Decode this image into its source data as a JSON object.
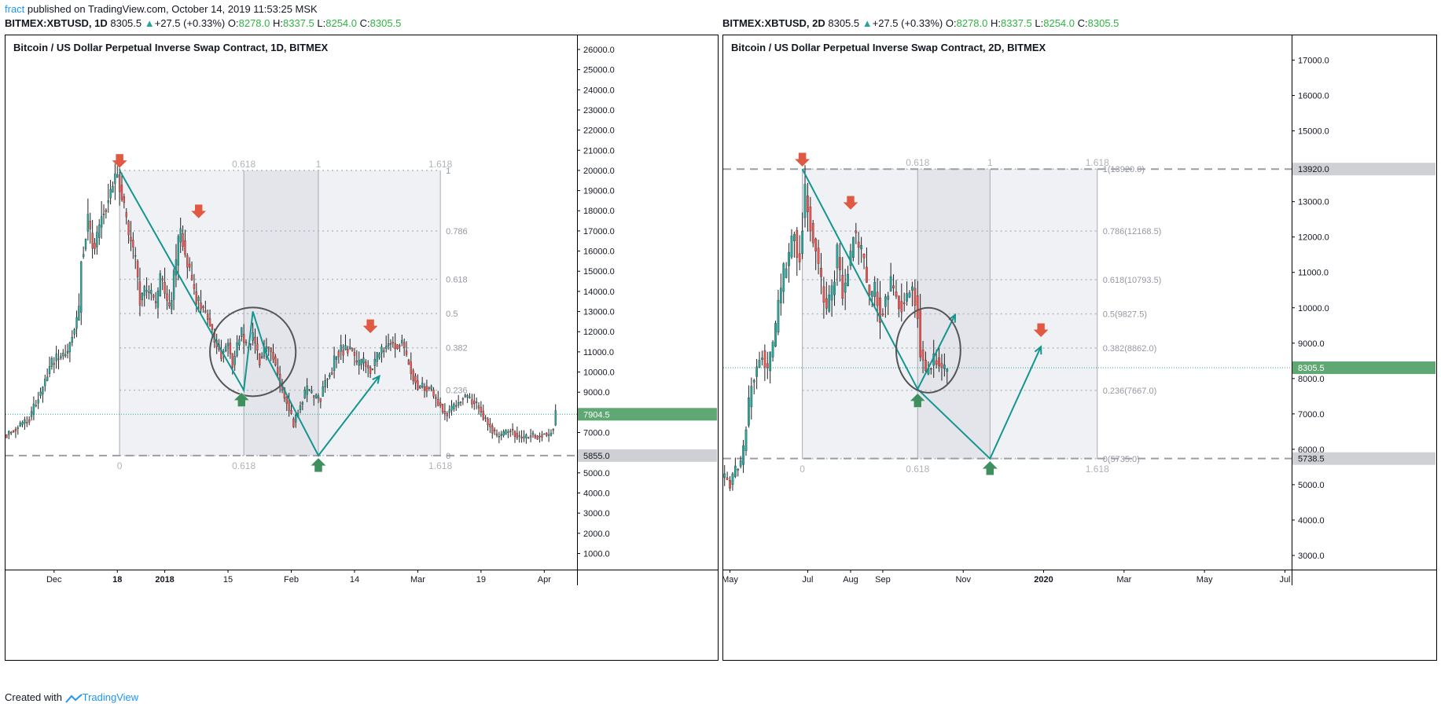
{
  "header": {
    "author": "fract",
    "published_text": " published on TradingView.com, October 14, 2019 11:53:25 MSK"
  },
  "footer": {
    "created_with": "Created with",
    "brand": "TradingView"
  },
  "colors": {
    "up": "#26a69a",
    "down": "#ef5350",
    "drawing": "#14958f",
    "arrow_up": "#3f8f5f",
    "arrow_down": "#e05a43",
    "fib_zone": "#ebecf0"
  },
  "charts": [
    {
      "ohlc": {
        "symbol": "BITMEX:XBTUSD, 1D",
        "last": "8305.5",
        "change": "+27.5 (+0.33%)",
        "o_label": "O:",
        "o": "8278.0",
        "h_label": "H:",
        "h": "8337.5",
        "l_label": "L:",
        "l": "8254.0",
        "c_label": "C:",
        "c": "8305.5"
      },
      "title": "Bitcoin / US Dollar Perpetual Inverse Swap Contract, 1D, BITMEX",
      "price_scale": {
        "min": 200,
        "max": 26700,
        "ticks": [
          1000,
          2000,
          3000,
          4000,
          5000,
          6000,
          7000,
          8000,
          9000,
          10000,
          11000,
          12000,
          13000,
          14000,
          15000,
          16000,
          17000,
          18000,
          19000,
          20000,
          21000,
          22000,
          23000,
          24000,
          25000,
          26000
        ]
      },
      "time_labels": [
        {
          "text": "Dec",
          "bar": 21
        },
        {
          "text": "18",
          "bar": 49,
          "bold": true
        },
        {
          "text": "2018",
          "bar": 70,
          "bold": true
        },
        {
          "text": "15",
          "bar": 98
        },
        {
          "text": "Feb",
          "bar": 126
        },
        {
          "text": "14",
          "bar": 154
        },
        {
          "text": "Mar",
          "bar": 182
        },
        {
          "text": "19",
          "bar": 210
        },
        {
          "text": "Apr",
          "bar": 238
        }
      ],
      "bars_visible": 253,
      "series": [
        [
          0,
          6900
        ],
        [
          10,
          7700
        ],
        [
          15,
          9000
        ],
        [
          20,
          10500
        ],
        [
          27,
          11000
        ],
        [
          32,
          13000
        ],
        [
          33,
          15500
        ],
        [
          36,
          17500
        ],
        [
          39,
          16000
        ],
        [
          42,
          17800
        ],
        [
          46,
          19000
        ],
        [
          49,
          20000
        ],
        [
          51,
          18600
        ],
        [
          54,
          16800
        ],
        [
          57,
          15500
        ],
        [
          59,
          13500
        ],
        [
          61,
          14000
        ],
        [
          64,
          13800
        ],
        [
          66,
          13200
        ],
        [
          68,
          14800
        ],
        [
          70,
          13800
        ],
        [
          72,
          13000
        ],
        [
          75,
          15500
        ],
        [
          77,
          17200
        ],
        [
          79,
          15800
        ],
        [
          82,
          14500
        ],
        [
          84,
          13600
        ],
        [
          87,
          13100
        ],
        [
          89,
          12600
        ],
        [
          93,
          11300
        ],
        [
          95,
          10900
        ],
        [
          98,
          11500
        ],
        [
          100,
          10300
        ],
        [
          102,
          11200
        ],
        [
          104,
          12000
        ],
        [
          106,
          11200
        ],
        [
          109,
          11800
        ],
        [
          112,
          10600
        ],
        [
          115,
          11300
        ],
        [
          118,
          10800
        ],
        [
          121,
          9500
        ],
        [
          124,
          8500
        ],
        [
          127,
          7400
        ],
        [
          129,
          8100
        ],
        [
          131,
          8600
        ],
        [
          133,
          9200
        ],
        [
          136,
          8700
        ],
        [
          139,
          8700
        ],
        [
          141,
          9600
        ],
        [
          144,
          10100
        ],
        [
          146,
          11000
        ],
        [
          149,
          11100
        ],
        [
          152,
          11200
        ],
        [
          155,
          10300
        ],
        [
          158,
          10500
        ],
        [
          161,
          10100
        ],
        [
          164,
          10800
        ],
        [
          167,
          11200
        ],
        [
          170,
          11500
        ],
        [
          173,
          11300
        ],
        [
          175,
          11500
        ],
        [
          177,
          10700
        ],
        [
          180,
          9800
        ],
        [
          182,
          9200
        ],
        [
          185,
          9300
        ],
        [
          188,
          9100
        ],
        [
          190,
          8600
        ],
        [
          192,
          8400
        ],
        [
          194,
          7900
        ],
        [
          197,
          8200
        ],
        [
          200,
          8500
        ],
        [
          202,
          8800
        ],
        [
          204,
          8700
        ],
        [
          206,
          8600
        ],
        [
          209,
          8200
        ],
        [
          211,
          7800
        ],
        [
          214,
          7300
        ],
        [
          217,
          6800
        ],
        [
          220,
          6900
        ],
        [
          223,
          7200
        ],
        [
          226,
          6800
        ],
        [
          229,
          6700
        ],
        [
          232,
          6900
        ],
        [
          235,
          6800
        ],
        [
          238,
          7000
        ],
        [
          240,
          6800
        ],
        [
          242,
          7300
        ],
        [
          243,
          7900
        ]
      ],
      "last_price": 7904.5,
      "badges": [
        {
          "value": 7904.5,
          "label": "7904.5",
          "style": "up"
        },
        {
          "value": 5855,
          "label": "5855.0",
          "style": "gray"
        }
      ],
      "fib": {
        "start_bar": 50,
        "end_bar": 192,
        "high": 20000,
        "low": 5855,
        "time_marks": [
          {
            "bar": 50,
            "label": "0"
          },
          {
            "bar": 105,
            "label": "0.618"
          },
          {
            "bar": 138,
            "label": "1"
          },
          {
            "bar": 192,
            "label": "1.618"
          }
        ],
        "shade_from_bar": 105,
        "shade_to_bar": 138,
        "levels": [
          {
            "value": 20000,
            "label": "1"
          },
          {
            "value": 17000,
            "label": "0.786"
          },
          {
            "value": 14600,
            "label": "0.618"
          },
          {
            "value": 12900,
            "label": "0.5"
          },
          {
            "value": 11200,
            "label": "0.382"
          },
          {
            "value": 9100,
            "label": "0.236"
          },
          {
            "value": 5855,
            "label": "0"
          }
        ]
      },
      "dashed_level": 5855,
      "dotted_level": 7904.5,
      "path": [
        [
          50,
          20000
        ],
        [
          105,
          9100
        ],
        [
          109,
          13000
        ],
        [
          114,
          11200
        ],
        [
          116,
          10600
        ],
        [
          138,
          5855
        ],
        [
          165,
          9800
        ]
      ],
      "ellipse": {
        "bar": 109,
        "value": 11000,
        "rx_bars": 19,
        "ry_value": 2200
      },
      "arrows_down": [
        [
          50,
          20000
        ],
        [
          85,
          17500
        ],
        [
          161,
          11800
        ]
      ],
      "arrows_up": [
        [
          104,
          9100
        ],
        [
          138,
          5855
        ]
      ]
    },
    {
      "ohlc": {
        "symbol": "BITMEX:XBTUSD, 2D",
        "last": "8305.5",
        "change": "+27.5 (+0.33%)",
        "o_label": "O:",
        "o": "8278.0",
        "h_label": "H:",
        "h": "8337.5",
        "l_label": "L:",
        "l": "8254.0",
        "c_label": "C:",
        "c": "8305.5"
      },
      "title": "Bitcoin / US Dollar Perpetual Inverse Swap Contract, 2D, BITMEX",
      "price_scale": {
        "min": 2600,
        "max": 17700,
        "ticks": [
          3000,
          4000,
          5000,
          6000,
          7000,
          8000,
          9000,
          10000,
          11000,
          12000,
          13000,
          14000,
          15000,
          16000,
          17000
        ]
      },
      "time_labels": [
        {
          "text": "May",
          "bar": 2
        },
        {
          "text": "Jul",
          "bar": 31
        },
        {
          "text": "Aug",
          "bar": 47
        },
        {
          "text": "Sep",
          "bar": 59
        },
        {
          "text": "Nov",
          "bar": 89
        },
        {
          "text": "2020",
          "bar": 119,
          "bold": true
        },
        {
          "text": "Mar",
          "bar": 149
        },
        {
          "text": "May",
          "bar": 179
        },
        {
          "text": "Jul",
          "bar": 209
        }
      ],
      "bars_visible": 212,
      "series": [
        [
          0,
          5200
        ],
        [
          2,
          5000
        ],
        [
          4,
          5400
        ],
        [
          6,
          5600
        ],
        [
          8,
          6700
        ],
        [
          10,
          7900
        ],
        [
          12,
          8300
        ],
        [
          14,
          8800
        ],
        [
          16,
          8200
        ],
        [
          18,
          9000
        ],
        [
          20,
          10000
        ],
        [
          22,
          11000
        ],
        [
          24,
          11500
        ],
        [
          26,
          12200
        ],
        [
          28,
          11200
        ],
        [
          30,
          13400
        ],
        [
          32,
          12300
        ],
        [
          34,
          11700
        ],
        [
          36,
          10700
        ],
        [
          38,
          9800
        ],
        [
          40,
          10500
        ],
        [
          42,
          11500
        ],
        [
          44,
          10300
        ],
        [
          46,
          11000
        ],
        [
          48,
          12200
        ],
        [
          50,
          11700
        ],
        [
          52,
          11300
        ],
        [
          54,
          10200
        ],
        [
          56,
          10500
        ],
        [
          58,
          9800
        ],
        [
          60,
          10200
        ],
        [
          62,
          10700
        ],
        [
          64,
          10300
        ],
        [
          66,
          10100
        ],
        [
          68,
          10300
        ],
        [
          70,
          10600
        ],
        [
          72,
          9900
        ],
        [
          73,
          8800
        ],
        [
          75,
          8100
        ],
        [
          77,
          8400
        ],
        [
          79,
          8600
        ],
        [
          81,
          8200
        ],
        [
          83,
          8200
        ]
      ],
      "last_price": 8305.5,
      "badges": [
        {
          "value": 13920,
          "label": "13920.0",
          "style": "gray"
        },
        {
          "value": 8305.5,
          "label": "8305.5",
          "style": "up"
        },
        {
          "value": 5738.5,
          "label": "5738.5",
          "style": "gray"
        }
      ],
      "fib": {
        "start_bar": 29,
        "end_bar": 139,
        "high": 13920,
        "low": 5735,
        "time_marks": [
          {
            "bar": 29,
            "label": "0"
          },
          {
            "bar": 72,
            "label": "0.618"
          },
          {
            "bar": 99,
            "label": "1"
          },
          {
            "bar": 139,
            "label": "1.618"
          }
        ],
        "shade_from_bar": 72,
        "shade_to_bar": 99,
        "levels": [
          {
            "value": 13920,
            "label": "1(13920.0)"
          },
          {
            "value": 12168.5,
            "label": "0.786(12168.5)"
          },
          {
            "value": 10793.5,
            "label": "0.618(10793.5)"
          },
          {
            "value": 9827.5,
            "label": "0.5(9827.5)"
          },
          {
            "value": 8862,
            "label": "0.382(8862.0)"
          },
          {
            "value": 7667,
            "label": "0.236(7667.0)"
          },
          {
            "value": 5735,
            "label": "0(5735.0)"
          }
        ]
      },
      "dashed_level": 13920,
      "dashed_level_2": 5738.5,
      "dotted_level": 8305.5,
      "path": [
        [
          29,
          13920
        ],
        [
          72,
          7700
        ],
        [
          86,
          9800
        ]
      ],
      "path2": [
        [
          72,
          7700
        ],
        [
          99,
          5735
        ],
        [
          118,
          8900
        ]
      ],
      "ellipse": {
        "bar": 76,
        "value": 8800,
        "rx_bars": 12,
        "ry_value": 1200
      },
      "arrows_down": [
        [
          29,
          13920
        ],
        [
          47,
          12700
        ],
        [
          118,
          9100
        ]
      ],
      "arrows_up": [
        [
          72,
          7650
        ],
        [
          99,
          5735
        ]
      ]
    }
  ]
}
